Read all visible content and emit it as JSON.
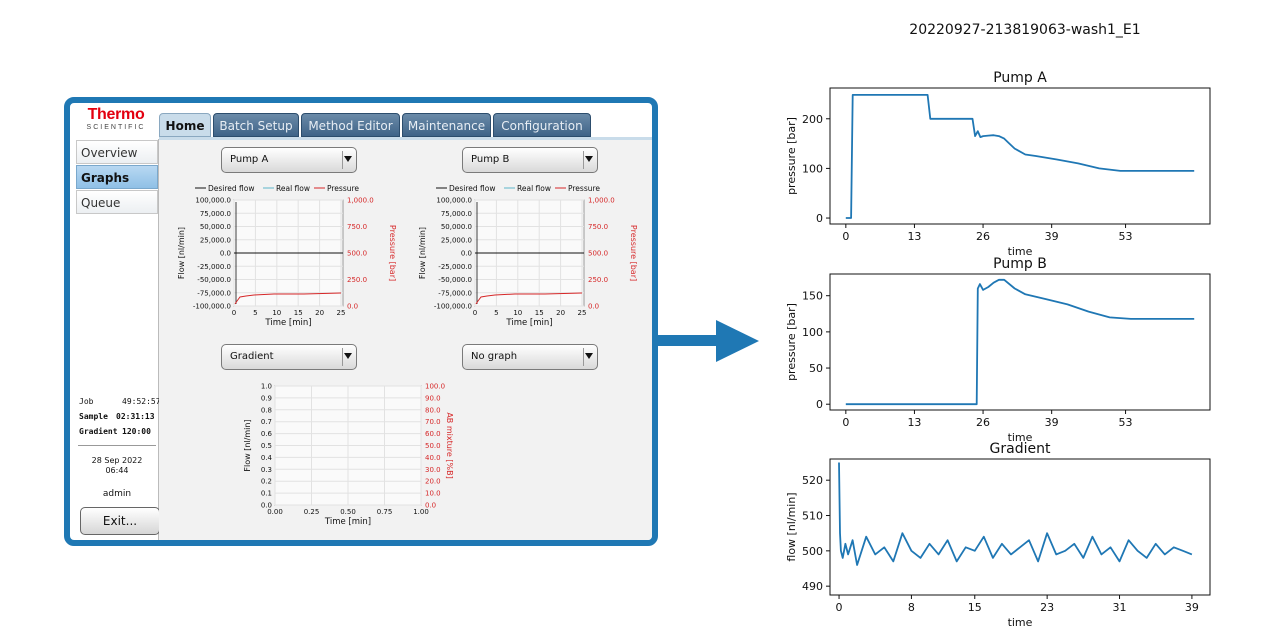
{
  "app": {
    "logo_line1": "Thermo",
    "logo_line2": "SCIENTIFIC",
    "tabs": [
      {
        "label": "Home",
        "active": true
      },
      {
        "label": "Batch Setup",
        "active": false
      },
      {
        "label": "Method Editor",
        "active": false
      },
      {
        "label": "Maintenance",
        "active": false
      },
      {
        "label": "Configuration",
        "active": false
      }
    ],
    "sidebar": [
      {
        "label": "Overview",
        "active": false
      },
      {
        "label": "Graphs",
        "active": true
      },
      {
        "label": "Queue",
        "active": false
      }
    ],
    "status": {
      "job_label": "Job",
      "job_value": "49:52:57",
      "sample_label": "Sample",
      "sample_value": "02:31:13",
      "gradient_label": "Gradient",
      "gradient_value": "120:00",
      "date": "28 Sep 2022",
      "time": "06:44",
      "user": "admin"
    },
    "exit_label": "Exit...",
    "dropdowns": {
      "top_left": "Pump A",
      "top_right": "Pump B",
      "bottom_left": "Gradient",
      "bottom_right": "No graph"
    },
    "legend": {
      "desired": "Desired flow",
      "real": "Real flow",
      "pressure": "Pressure"
    },
    "pump_chart": {
      "ylabel_left": "Flow [nl/min]",
      "ylabel_right": "Pressure [bar]",
      "xlabel": "Time [min]",
      "left_ticks": [
        "100,000.0",
        "75,000.0",
        "50,000.0",
        "25,000.0",
        "0.0",
        "-25,000.0",
        "-50,000.0",
        "-75,000.0",
        "-100,000.0"
      ],
      "right_ticks": [
        "1,000.0",
        "750.0",
        "500.0",
        "250.0",
        "0.0"
      ],
      "x_ticks": [
        "0",
        "5",
        "10",
        "15",
        "20",
        "25"
      ]
    },
    "gradient_chart": {
      "ylabel_left": "Flow [nl/min]",
      "ylabel_right": "AB mixture [%B]",
      "xlabel": "Time [min]",
      "left_ticks": [
        "1.0",
        "0.9",
        "0.8",
        "0.7",
        "0.6",
        "0.5",
        "0.4",
        "0.3",
        "0.2",
        "0.1",
        "0.0"
      ],
      "right_ticks": [
        "100.0",
        "90.0",
        "80.0",
        "70.0",
        "60.0",
        "50.0",
        "40.0",
        "30.0",
        "20.0",
        "10.0",
        "0.0"
      ],
      "x_ticks": [
        "0.00",
        "0.25",
        "0.50",
        "0.75",
        "1.00"
      ]
    },
    "colors": {
      "accent_border": "#1f78b4",
      "pressure_line": "#d62728",
      "arrow": "#1f78b4"
    }
  },
  "figure": {
    "title": "20220927-213819063-wash1_E1"
  },
  "chart_data": [
    {
      "type": "line",
      "title": "Pump A",
      "xlabel": "time",
      "ylabel": "pressure [bar]",
      "x_ticks": [
        "0",
        "13",
        "26",
        "39",
        "53"
      ],
      "y_ticks": [
        "0",
        "100",
        "200"
      ],
      "xlim": [
        -3,
        69
      ],
      "ylim": [
        -12,
        262
      ],
      "series": [
        {
          "x": [
            0,
            1,
            1.3,
            4,
            8,
            12,
            15.5,
            16,
            20,
            24,
            24.5,
            25,
            25.5,
            26,
            27,
            28,
            29,
            30,
            31,
            32,
            34,
            36,
            40,
            44,
            48,
            52,
            56,
            60,
            64,
            66
          ],
          "y": [
            0,
            0,
            248,
            248,
            248,
            248,
            248,
            200,
            200,
            200,
            165,
            175,
            163,
            165,
            166,
            167,
            165,
            160,
            150,
            140,
            128,
            125,
            118,
            110,
            100,
            95,
            95,
            95,
            95,
            95
          ]
        }
      ]
    },
    {
      "type": "line",
      "title": "Pump B",
      "xlabel": "time",
      "ylabel": "pressure [bar]",
      "x_ticks": [
        "0",
        "13",
        "26",
        "39",
        "53"
      ],
      "y_ticks": [
        "0",
        "50",
        "100",
        "150"
      ],
      "xlim": [
        -3,
        69
      ],
      "ylim": [
        -8,
        180
      ],
      "series": [
        {
          "x": [
            0,
            5,
            10,
            15,
            20,
            24.8,
            25,
            25.4,
            26,
            27,
            28,
            29,
            30,
            32,
            34,
            38,
            42,
            46,
            50,
            54,
            58,
            62,
            66
          ],
          "y": [
            0,
            0,
            0,
            0,
            0,
            0,
            160,
            166,
            158,
            162,
            168,
            172,
            172,
            160,
            152,
            145,
            138,
            128,
            120,
            118,
            118,
            118,
            118
          ]
        }
      ]
    },
    {
      "type": "line",
      "title": "Gradient",
      "xlabel": "time",
      "ylabel": "flow [nl/min]",
      "x_ticks": [
        "0",
        "8",
        "15",
        "23",
        "31",
        "39"
      ],
      "y_ticks": [
        "490",
        "500",
        "510",
        "520"
      ],
      "xlim": [
        -1,
        41
      ],
      "ylim": [
        487.5,
        526
      ],
      "series": [
        {
          "x": [
            0,
            0.1,
            0.2,
            0.4,
            0.7,
            1,
            1.5,
            2,
            3,
            4,
            5,
            6,
            7,
            8,
            9,
            10,
            11,
            12,
            13,
            14,
            15,
            16,
            17,
            18,
            19,
            20,
            21,
            22,
            23,
            24,
            25,
            26,
            27,
            28,
            29,
            30,
            31,
            32,
            33,
            34,
            35,
            36,
            37,
            38,
            39
          ],
          "y": [
            525,
            505,
            500,
            498,
            502,
            499,
            503,
            496,
            504,
            499,
            501,
            497,
            505,
            500,
            498,
            502,
            499,
            503,
            497,
            501,
            500,
            504,
            498,
            502,
            499,
            501,
            503,
            497,
            505,
            499,
            500,
            502,
            498,
            504,
            499,
            501,
            497,
            503,
            500,
            498,
            502,
            499,
            501,
            500,
            499
          ]
        }
      ]
    }
  ]
}
